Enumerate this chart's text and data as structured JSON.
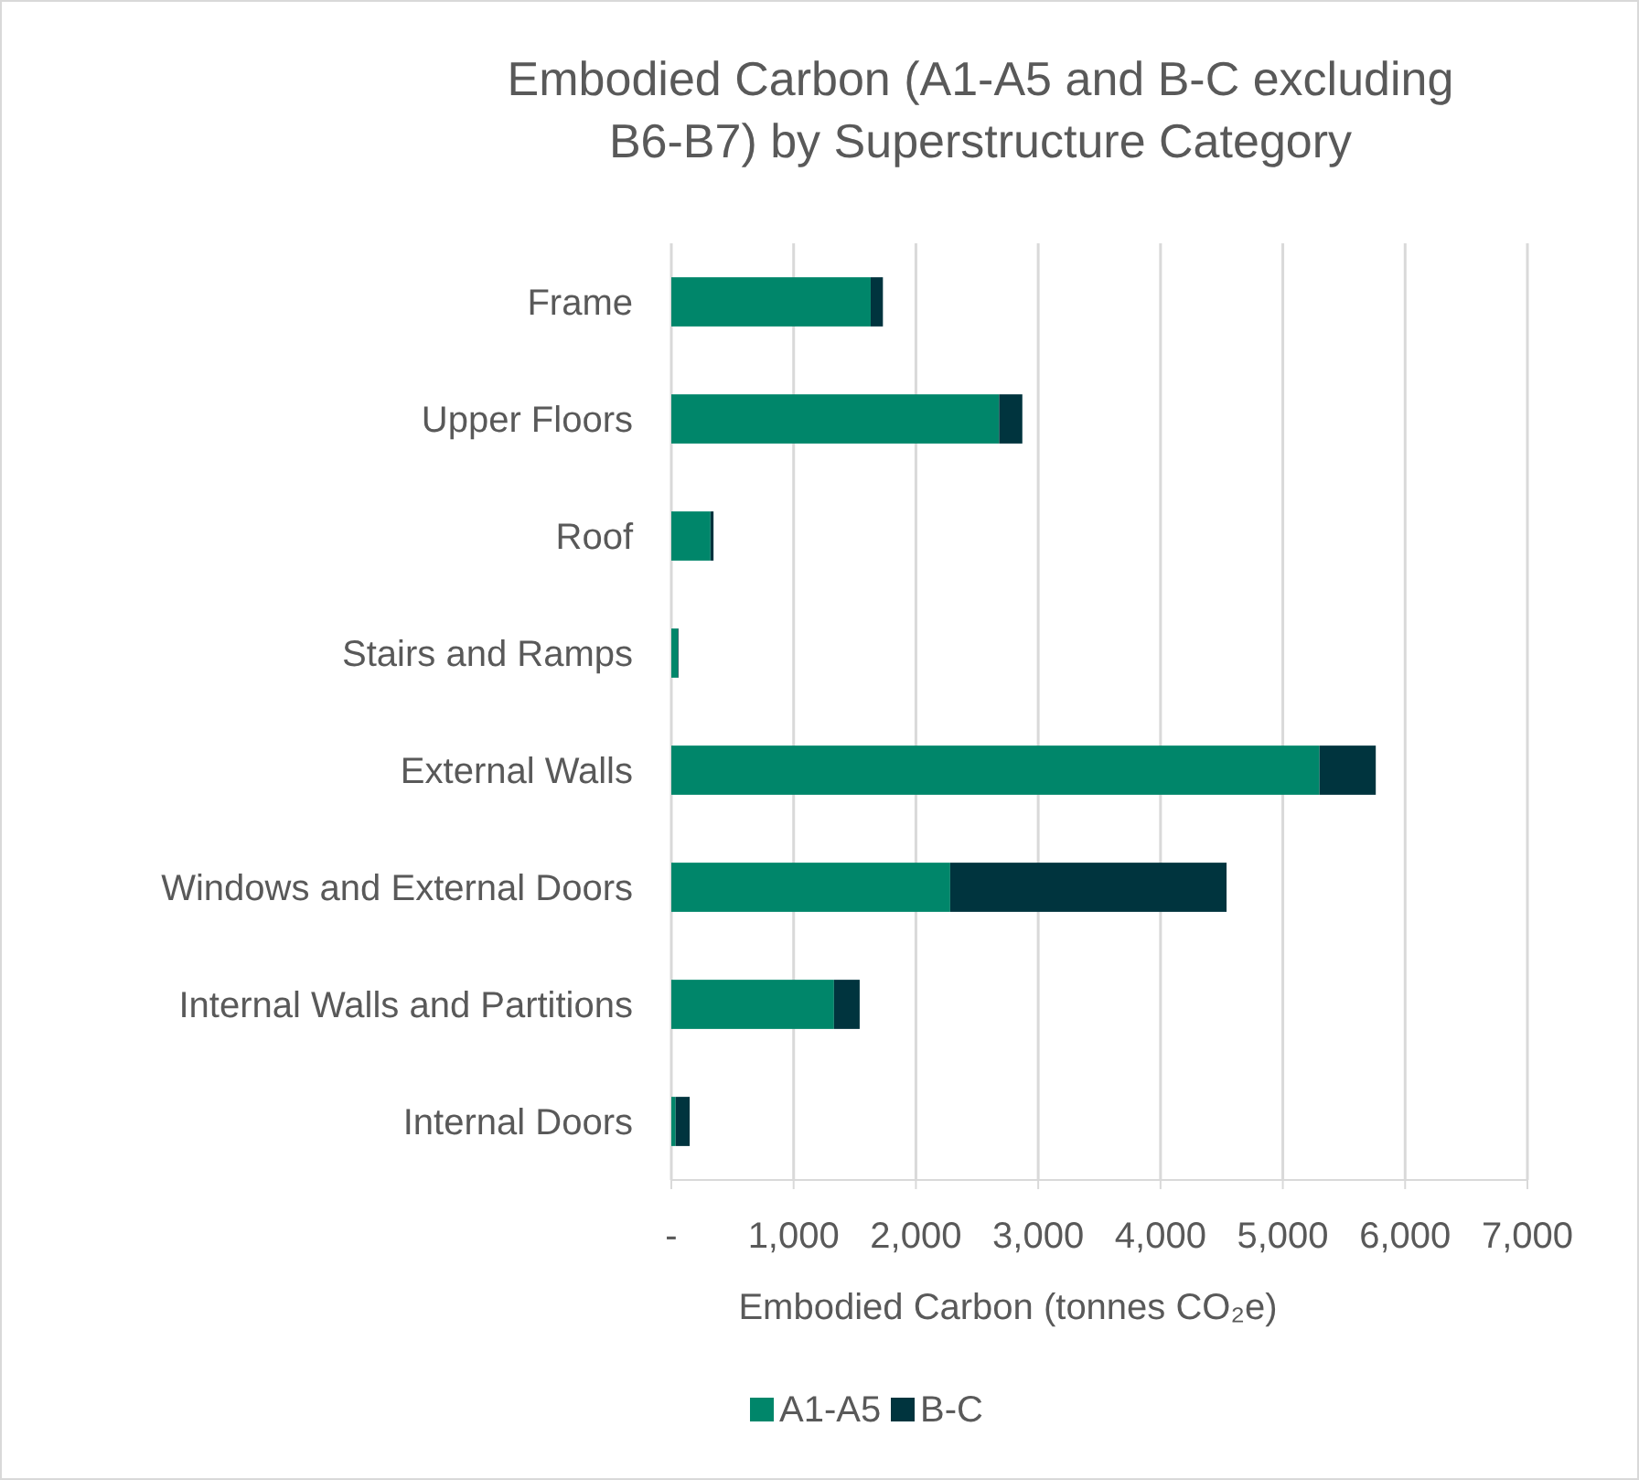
{
  "chart_data": {
    "type": "bar",
    "orientation": "horizontal",
    "stacked": true,
    "title": "Embodied Carbon (A1-A5 and B-C excluding B6-B7) by Superstructure Category",
    "xlabel": "Embodied Carbon (tonnes CO₂e)",
    "categories": [
      "Frame",
      "Upper Floors",
      "Roof",
      "Stairs and Ramps",
      "External Walls",
      "Windows and External Doors",
      "Internal Walls and Partitions",
      "Internal Doors"
    ],
    "series": [
      {
        "name": "A1-A5",
        "color": "#00866a",
        "values": [
          1630,
          2680,
          320,
          55,
          5300,
          2280,
          1330,
          35
        ]
      },
      {
        "name": "B-C",
        "color": "#00343e",
        "values": [
          100,
          190,
          25,
          5,
          460,
          2260,
          210,
          115
        ]
      }
    ],
    "xlim": [
      0,
      7000
    ],
    "xticks": [
      {
        "value": 0,
        "label": "-"
      },
      {
        "value": 1000,
        "label": "1,000"
      },
      {
        "value": 2000,
        "label": "2,000"
      },
      {
        "value": 3000,
        "label": "3,000"
      },
      {
        "value": 4000,
        "label": "4,000"
      },
      {
        "value": 5000,
        "label": "5,000"
      },
      {
        "value": 6000,
        "label": "6,000"
      },
      {
        "value": 7000,
        "label": "7,000"
      }
    ],
    "grid": "x",
    "legend": "bottom"
  }
}
